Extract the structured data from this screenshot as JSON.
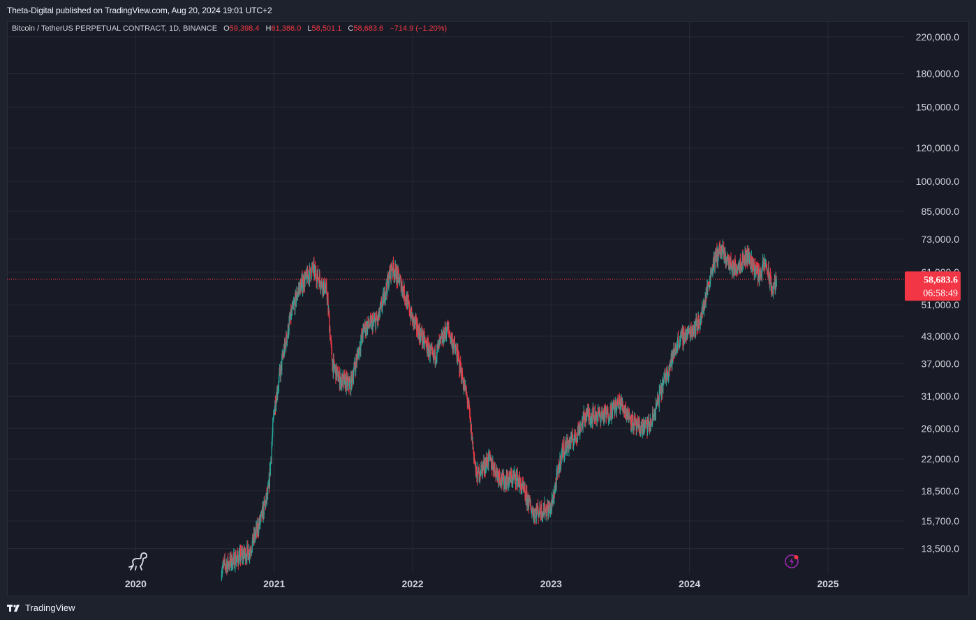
{
  "header": {
    "publisher": "Theta-Digital published on TradingView.com, Aug 20, 2024 19:01 UTC+2"
  },
  "legend": {
    "symbol": "Bitcoin / TetherUS PERPETUAL CONTRACT, 1D, BINANCE",
    "open_label": "O",
    "open": "59,398.4",
    "high_label": "H",
    "high": "61,386.0",
    "low_label": "L",
    "low": "58,501.1",
    "close_label": "C",
    "close": "58,683.6",
    "change": "−714.9 (−1.20%)"
  },
  "price_badge": {
    "price": "58,683.6",
    "countdown": "06:58:49"
  },
  "footer": {
    "brand": "TradingView"
  },
  "colors": {
    "up": "#26a69a",
    "down": "#f23645",
    "bg": "#181b25",
    "grid": "#262a35",
    "text": "#d1d4dc",
    "badge": "#f23645"
  },
  "icons": {
    "brand_logo": "tradingview-logo-icon",
    "dino": "dino-icon",
    "lightning": "lightning-bolt-icon"
  },
  "chart_data": {
    "type": "candlestick",
    "title": "Bitcoin / TetherUS PERPETUAL CONTRACT, 1D, BINANCE",
    "scale": "log",
    "ylim": [
      11800,
      240000
    ],
    "xlim": [
      2019.07,
      2025.55
    ],
    "y_ticks": [
      {
        "value": 220000,
        "label": "220,000.0"
      },
      {
        "value": 180000,
        "label": "180,000.0"
      },
      {
        "value": 150000,
        "label": "150,000.0"
      },
      {
        "value": 120000,
        "label": "120,000.0"
      },
      {
        "value": 100000,
        "label": "100,000.0"
      },
      {
        "value": 85000,
        "label": "85,000.0"
      },
      {
        "value": 73000,
        "label": "73,000.0"
      },
      {
        "value": 61000,
        "label": "61,000.0"
      },
      {
        "value": 51000,
        "label": "51,000.0"
      },
      {
        "value": 43000,
        "label": "43,000.0"
      },
      {
        "value": 37000,
        "label": "37,000.0"
      },
      {
        "value": 31000,
        "label": "31,000.0"
      },
      {
        "value": 26000,
        "label": "26,000.0"
      },
      {
        "value": 22000,
        "label": "22,000.0"
      },
      {
        "value": 18500,
        "label": "18,500.0"
      },
      {
        "value": 15700,
        "label": "15,700.0"
      },
      {
        "value": 13500,
        "label": "13,500.0"
      }
    ],
    "x_ticks": [
      {
        "value": 2020,
        "label": "2020"
      },
      {
        "value": 2021,
        "label": "2021"
      },
      {
        "value": 2022,
        "label": "2022"
      },
      {
        "value": 2023,
        "label": "2023"
      },
      {
        "value": 2024,
        "label": "2024"
      },
      {
        "value": 2025,
        "label": "2025"
      }
    ],
    "last_price": 58683.6,
    "price_path": [
      [
        2020.62,
        12200
      ],
      [
        2020.82,
        13300
      ],
      [
        2020.9,
        15700
      ],
      [
        2020.96,
        18500
      ],
      [
        2021.0,
        29000
      ],
      [
        2021.06,
        38000
      ],
      [
        2021.12,
        48000
      ],
      [
        2021.18,
        56000
      ],
      [
        2021.28,
        62000
      ],
      [
        2021.38,
        55000
      ],
      [
        2021.42,
        37000
      ],
      [
        2021.47,
        34000
      ],
      [
        2021.55,
        33000
      ],
      [
        2021.65,
        45000
      ],
      [
        2021.75,
        47000
      ],
      [
        2021.85,
        63000
      ],
      [
        2021.92,
        57000
      ],
      [
        2022.0,
        47000
      ],
      [
        2022.08,
        42000
      ],
      [
        2022.15,
        38000
      ],
      [
        2022.25,
        45000
      ],
      [
        2022.32,
        39000
      ],
      [
        2022.4,
        30000
      ],
      [
        2022.46,
        20000
      ],
      [
        2022.55,
        22000
      ],
      [
        2022.65,
        19500
      ],
      [
        2022.75,
        20000
      ],
      [
        2022.87,
        16500
      ],
      [
        2023.0,
        16800
      ],
      [
        2023.08,
        23000
      ],
      [
        2023.18,
        25000
      ],
      [
        2023.25,
        28000
      ],
      [
        2023.4,
        28000
      ],
      [
        2023.5,
        30000
      ],
      [
        2023.62,
        26000
      ],
      [
        2023.72,
        26500
      ],
      [
        2023.82,
        34000
      ],
      [
        2023.92,
        42000
      ],
      [
        2024.0,
        44000
      ],
      [
        2024.08,
        47000
      ],
      [
        2024.17,
        64000
      ],
      [
        2024.22,
        69000
      ],
      [
        2024.32,
        62000
      ],
      [
        2024.42,
        67000
      ],
      [
        2024.5,
        60000
      ],
      [
        2024.55,
        64000
      ],
      [
        2024.6,
        55000
      ],
      [
        2024.63,
        58683.6
      ]
    ]
  }
}
